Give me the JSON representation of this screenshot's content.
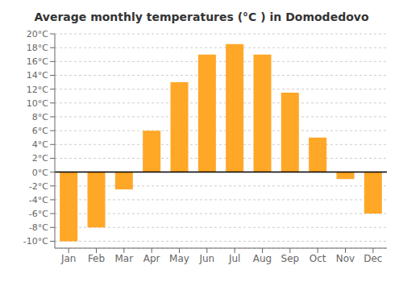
{
  "chart_data": {
    "type": "bar",
    "title": "Average monthly temperatures (°C ) in Domodedovo",
    "categories": [
      "Jan",
      "Feb",
      "Mar",
      "Apr",
      "May",
      "Jun",
      "Jul",
      "Aug",
      "Sep",
      "Oct",
      "Nov",
      "Dec"
    ],
    "values": [
      -10,
      -8,
      -2.5,
      6,
      13,
      17,
      18.5,
      17,
      11.5,
      5,
      -1,
      -6
    ],
    "color": "#FFA726",
    "ylim": [
      -11,
      20
    ],
    "yticks": [
      {
        "value": -10,
        "label": "-10°C"
      },
      {
        "value": -8,
        "label": "-8°C"
      },
      {
        "value": -6,
        "label": "-6°C"
      },
      {
        "value": -4,
        "label": "-4°C"
      },
      {
        "value": -2,
        "label": "-2°C"
      },
      {
        "value": 0,
        "label": "0°C"
      },
      {
        "value": 2,
        "label": "2°C"
      },
      {
        "value": 4,
        "label": "4°C"
      },
      {
        "value": 6,
        "label": "6°C"
      },
      {
        "value": 8,
        "label": "8°C"
      },
      {
        "value": 10,
        "label": "10°C"
      },
      {
        "value": 12,
        "label": "12°C"
      },
      {
        "value": 14,
        "label": "14°C"
      },
      {
        "value": 16,
        "label": "16°C"
      },
      {
        "value": 18,
        "label": "18°C"
      },
      {
        "value": 20,
        "label": "20°C"
      }
    ],
    "grid": true
  }
}
